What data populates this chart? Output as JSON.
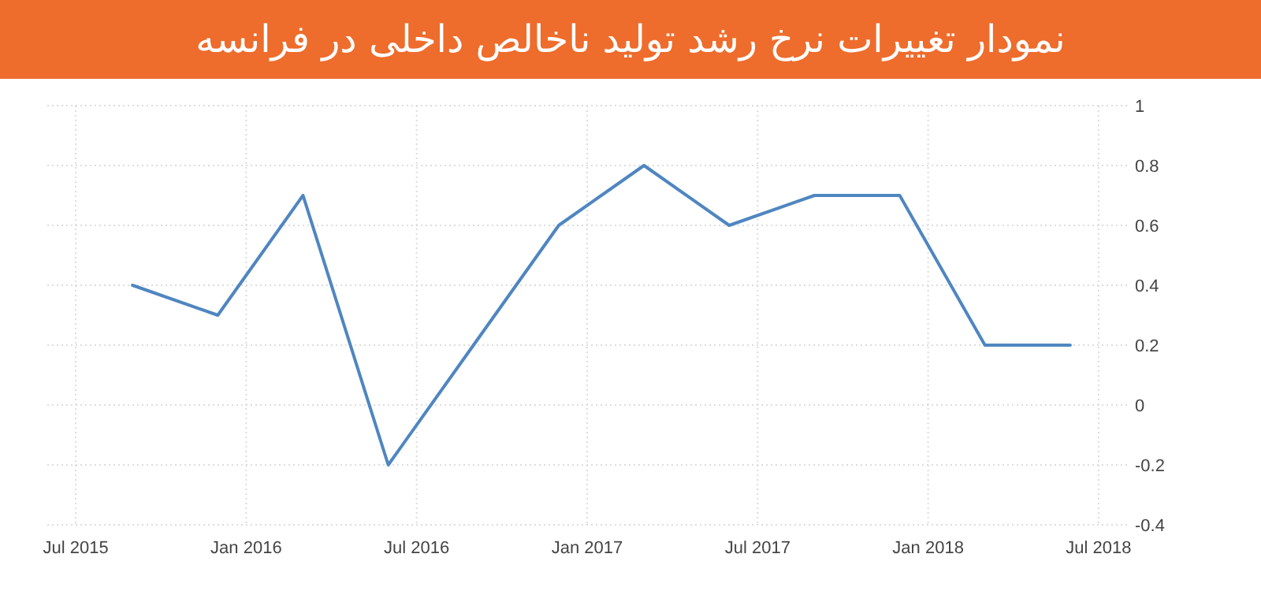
{
  "chart_data": {
    "type": "line",
    "title": "نمودار تغییرات نرخ رشد تولید ناخالص داخلی در فرانسه",
    "x": [
      "2015-09",
      "2015-12",
      "2016-03",
      "2016-06",
      "2016-09",
      "2016-12",
      "2017-03",
      "2017-06",
      "2017-09",
      "2017-12",
      "2018-03",
      "2018-06"
    ],
    "series": [
      {
        "color": "#4f86c0",
        "values": [
          0.4,
          0.3,
          0.7,
          -0.2,
          0.2,
          0.6,
          0.8,
          0.6,
          0.7,
          0.7,
          0.2,
          0.2
        ]
      }
    ],
    "xlim": [
      "2015-06",
      "2018-08"
    ],
    "xticks": [
      {
        "value": "2015-07",
        "label": "Jul 2015"
      },
      {
        "value": "2016-01",
        "label": "Jan 2016"
      },
      {
        "value": "2016-07",
        "label": "Jul 2016"
      },
      {
        "value": "2017-01",
        "label": "Jan 2017"
      },
      {
        "value": "2017-07",
        "label": "Jul 2017"
      },
      {
        "value": "2018-01",
        "label": "Jan 2018"
      },
      {
        "value": "2018-07",
        "label": "Jul 2018"
      }
    ],
    "ylim": [
      -0.4,
      1
    ],
    "yticks": [
      -0.4,
      -0.2,
      0,
      0.2,
      0.4,
      0.6,
      0.8,
      1
    ],
    "grid": true,
    "line_style": "solid"
  }
}
